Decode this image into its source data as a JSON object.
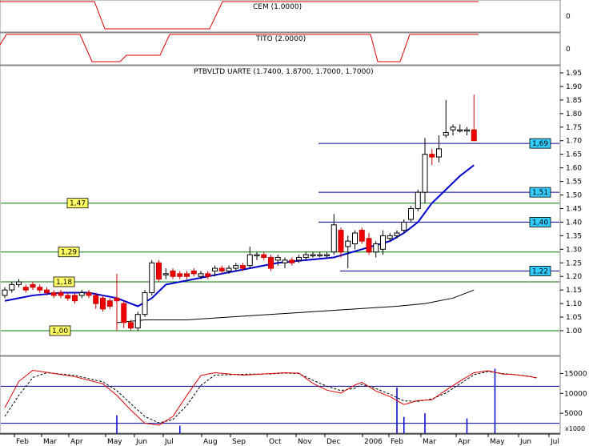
{
  "chart_data": {
    "type": "candlestick",
    "panels": {
      "cem": {
        "title": "CEM (1.0000)",
        "right_label": "0"
      },
      "tito": {
        "title": "TITO (2.0000)",
        "right_label": "0"
      },
      "price": {
        "title": "PTBVLTD UARTE (1.7400, 1.8700, 1.7000, 1.7000)",
        "ylim": [
          0.98,
          1.96
        ],
        "yticks": [
          "1.95",
          "1.90",
          "1.85",
          "1.80",
          "1.75",
          "1.70",
          "1.65",
          "1.60",
          "1.55",
          "1.50",
          "1.45",
          "1.40",
          "1.35",
          "1.30",
          "1.25",
          "1.20",
          "1.15",
          "1.10",
          "1.05",
          "1.00"
        ],
        "left_levels": [
          "1,47",
          "1,29",
          "1,18",
          "1,00"
        ],
        "right_levels": [
          "1,69",
          "1,51",
          "1,40",
          "1,22"
        ]
      },
      "volume": {
        "ylim": [
          0,
          17500
        ],
        "yticks": [
          "15000",
          "10000",
          "5000"
        ],
        "unit_label": "x1000",
        "h_levels": [
          11800,
          2500
        ]
      }
    },
    "x_months": [
      "Feb",
      "Mar",
      "Apr",
      "May",
      "Jun",
      "Jul",
      "Aug",
      "Sep",
      "Oct",
      "Nov",
      "Dec",
      "2006",
      "Feb",
      "Mar",
      "Apr",
      "May",
      "Jun",
      "Jul"
    ],
    "left_level_values": [
      1.47,
      1.29,
      1.18,
      1.0
    ],
    "right_level_values": [
      1.69,
      1.51,
      1.4,
      1.22
    ],
    "candles": [
      [
        1.13,
        1.16,
        1.12,
        1.15
      ],
      [
        1.15,
        1.18,
        1.14,
        1.17
      ],
      [
        1.17,
        1.19,
        1.16,
        1.18
      ],
      [
        1.16,
        1.17,
        1.14,
        1.15
      ],
      [
        1.17,
        1.18,
        1.15,
        1.16
      ],
      [
        1.16,
        1.17,
        1.14,
        1.15
      ],
      [
        1.15,
        1.16,
        1.13,
        1.14
      ],
      [
        1.14,
        1.15,
        1.12,
        1.13
      ],
      [
        1.14,
        1.15,
        1.12,
        1.13
      ],
      [
        1.13,
        1.14,
        1.11,
        1.12
      ],
      [
        1.13,
        1.14,
        1.1,
        1.11
      ],
      [
        1.13,
        1.15,
        1.12,
        1.14
      ],
      [
        1.14,
        1.15,
        1.12,
        1.13
      ],
      [
        1.13,
        1.14,
        1.08,
        1.1
      ],
      [
        1.12,
        1.13,
        1.07,
        1.08
      ],
      [
        1.11,
        1.12,
        1.08,
        1.09
      ],
      [
        1.12,
        1.21,
        1.0,
        1.11
      ],
      [
        1.1,
        1.11,
        1.01,
        1.03
      ],
      [
        1.03,
        1.04,
        1.0,
        1.01
      ],
      [
        1.01,
        1.07,
        1.0,
        1.06
      ],
      [
        1.06,
        1.15,
        1.05,
        1.14
      ],
      [
        1.14,
        1.26,
        1.13,
        1.25
      ],
      [
        1.25,
        1.26,
        1.18,
        1.19
      ],
      [
        1.21,
        1.23,
        1.19,
        1.21
      ],
      [
        1.22,
        1.23,
        1.19,
        1.2
      ],
      [
        1.21,
        1.22,
        1.19,
        1.2
      ],
      [
        1.21,
        1.22,
        1.19,
        1.2
      ],
      [
        1.22,
        1.23,
        1.2,
        1.21
      ],
      [
        1.2,
        1.22,
        1.19,
        1.21
      ],
      [
        1.21,
        1.22,
        1.19,
        1.2
      ],
      [
        1.22,
        1.24,
        1.2,
        1.23
      ],
      [
        1.23,
        1.24,
        1.21,
        1.22
      ],
      [
        1.22,
        1.24,
        1.21,
        1.23
      ],
      [
        1.23,
        1.25,
        1.22,
        1.24
      ],
      [
        1.24,
        1.25,
        1.22,
        1.23
      ],
      [
        1.24,
        1.31,
        1.23,
        1.28
      ],
      [
        1.28,
        1.29,
        1.26,
        1.28
      ],
      [
        1.28,
        1.29,
        1.26,
        1.27
      ],
      [
        1.27,
        1.28,
        1.22,
        1.23
      ],
      [
        1.26,
        1.28,
        1.24,
        1.27
      ],
      [
        1.25,
        1.27,
        1.23,
        1.26
      ],
      [
        1.26,
        1.27,
        1.24,
        1.25
      ],
      [
        1.26,
        1.28,
        1.25,
        1.27
      ],
      [
        1.27,
        1.29,
        1.26,
        1.28
      ],
      [
        1.28,
        1.29,
        1.27,
        1.28
      ],
      [
        1.28,
        1.29,
        1.27,
        1.28
      ],
      [
        1.28,
        1.29,
        1.27,
        1.28
      ],
      [
        1.29,
        1.43,
        1.28,
        1.39
      ],
      [
        1.37,
        1.38,
        1.27,
        1.29
      ],
      [
        1.31,
        1.35,
        1.23,
        1.33
      ],
      [
        1.32,
        1.37,
        1.3,
        1.36
      ],
      [
        1.37,
        1.38,
        1.32,
        1.33
      ],
      [
        1.34,
        1.36,
        1.28,
        1.29
      ],
      [
        1.29,
        1.33,
        1.27,
        1.32
      ],
      [
        1.3,
        1.37,
        1.28,
        1.35
      ],
      [
        1.34,
        1.36,
        1.33,
        1.35
      ],
      [
        1.35,
        1.37,
        1.34,
        1.36
      ],
      [
        1.37,
        1.41,
        1.36,
        1.4
      ],
      [
        1.41,
        1.46,
        1.4,
        1.45
      ],
      [
        1.45,
        1.52,
        1.44,
        1.51
      ],
      [
        1.51,
        1.71,
        1.47,
        1.65
      ],
      [
        1.65,
        1.67,
        1.61,
        1.64
      ],
      [
        1.64,
        1.72,
        1.62,
        1.67
      ],
      [
        1.72,
        1.85,
        1.71,
        1.73
      ],
      [
        1.74,
        1.76,
        1.72,
        1.75
      ],
      [
        1.74,
        1.76,
        1.73,
        1.74
      ],
      [
        1.74,
        1.75,
        1.72,
        1.74
      ],
      [
        1.74,
        1.87,
        1.7,
        1.7
      ]
    ],
    "ma_fast": [
      [
        0,
        1.11
      ],
      [
        4,
        1.13
      ],
      [
        8,
        1.14
      ],
      [
        12,
        1.14
      ],
      [
        16,
        1.12
      ],
      [
        19,
        1.09
      ],
      [
        21,
        1.12
      ],
      [
        23,
        1.17
      ],
      [
        27,
        1.19
      ],
      [
        31,
        1.21
      ],
      [
        35,
        1.23
      ],
      [
        39,
        1.25
      ],
      [
        43,
        1.26
      ],
      [
        47,
        1.27
      ],
      [
        51,
        1.3
      ],
      [
        55,
        1.33
      ],
      [
        57,
        1.36
      ],
      [
        59,
        1.4
      ],
      [
        61,
        1.47
      ],
      [
        63,
        1.52
      ],
      [
        65,
        1.57
      ],
      [
        67,
        1.61
      ]
    ],
    "ma_slow": [
      [
        16,
        1.03
      ],
      [
        20,
        1.04
      ],
      [
        26,
        1.04
      ],
      [
        32,
        1.05
      ],
      [
        38,
        1.06
      ],
      [
        44,
        1.07
      ],
      [
        50,
        1.08
      ],
      [
        56,
        1.09
      ],
      [
        60,
        1.1
      ],
      [
        64,
        1.12
      ],
      [
        67,
        1.15
      ]
    ],
    "stoch_k": [
      [
        0,
        6400
      ],
      [
        2,
        13000
      ],
      [
        4,
        15800
      ],
      [
        6,
        15300
      ],
      [
        10,
        14200
      ],
      [
        14,
        12400
      ],
      [
        16,
        9500
      ],
      [
        18,
        5800
      ],
      [
        20,
        2500
      ],
      [
        22,
        2000
      ],
      [
        24,
        4200
      ],
      [
        26,
        9500
      ],
      [
        28,
        14500
      ],
      [
        30,
        15200
      ],
      [
        34,
        14600
      ],
      [
        38,
        15000
      ],
      [
        40,
        15200
      ],
      [
        42,
        15100
      ],
      [
        44,
        12500
      ],
      [
        46,
        10800
      ],
      [
        48,
        10100
      ],
      [
        50,
        12100
      ],
      [
        51,
        12800
      ],
      [
        53,
        10600
      ],
      [
        55,
        9200
      ],
      [
        57,
        7200
      ],
      [
        59,
        8200
      ],
      [
        61,
        8400
      ],
      [
        63,
        10800
      ],
      [
        65,
        13100
      ],
      [
        67,
        15200
      ],
      [
        69,
        15700
      ],
      [
        71,
        14900
      ],
      [
        73,
        14700
      ],
      [
        75,
        14200
      ],
      [
        76,
        13900
      ]
    ],
    "stoch_d": [
      [
        0,
        4200
      ],
      [
        2,
        9500
      ],
      [
        4,
        14000
      ],
      [
        6,
        15200
      ],
      [
        10,
        14500
      ],
      [
        14,
        12900
      ],
      [
        16,
        10700
      ],
      [
        18,
        7400
      ],
      [
        20,
        4200
      ],
      [
        22,
        2600
      ],
      [
        24,
        3400
      ],
      [
        26,
        7000
      ],
      [
        28,
        12000
      ],
      [
        30,
        14600
      ],
      [
        34,
        14800
      ],
      [
        38,
        14900
      ],
      [
        40,
        15100
      ],
      [
        42,
        15000
      ],
      [
        44,
        13300
      ],
      [
        46,
        11800
      ],
      [
        48,
        10700
      ],
      [
        50,
        11300
      ],
      [
        51,
        12300
      ],
      [
        53,
        11200
      ],
      [
        55,
        9800
      ],
      [
        57,
        8100
      ],
      [
        59,
        8000
      ],
      [
        61,
        8600
      ],
      [
        63,
        10100
      ],
      [
        65,
        12400
      ],
      [
        67,
        14700
      ],
      [
        69,
        15500
      ],
      [
        71,
        15000
      ],
      [
        73,
        14700
      ],
      [
        75,
        14300
      ],
      [
        76,
        13800
      ]
    ],
    "volume_spikes": [
      {
        "i": 16,
        "v": 4500
      },
      {
        "i": 25,
        "v": 1900
      },
      {
        "i": 56,
        "v": 11500
      },
      {
        "i": 57,
        "v": 4100
      },
      {
        "i": 60,
        "v": 5000
      },
      {
        "i": 66,
        "v": 3700
      },
      {
        "i": 70,
        "v": 16200
      }
    ],
    "colors": {
      "indicator_red": "#dd0000",
      "ma_fast": "#0000cc",
      "ma_slow": "#000000",
      "levels_green": "#007a00",
      "levels_blue": "#000099",
      "bull": "#ffffff",
      "bear": "#ee0000",
      "left_tag": "#ffff66",
      "right_tag": "#33ccff"
    }
  }
}
